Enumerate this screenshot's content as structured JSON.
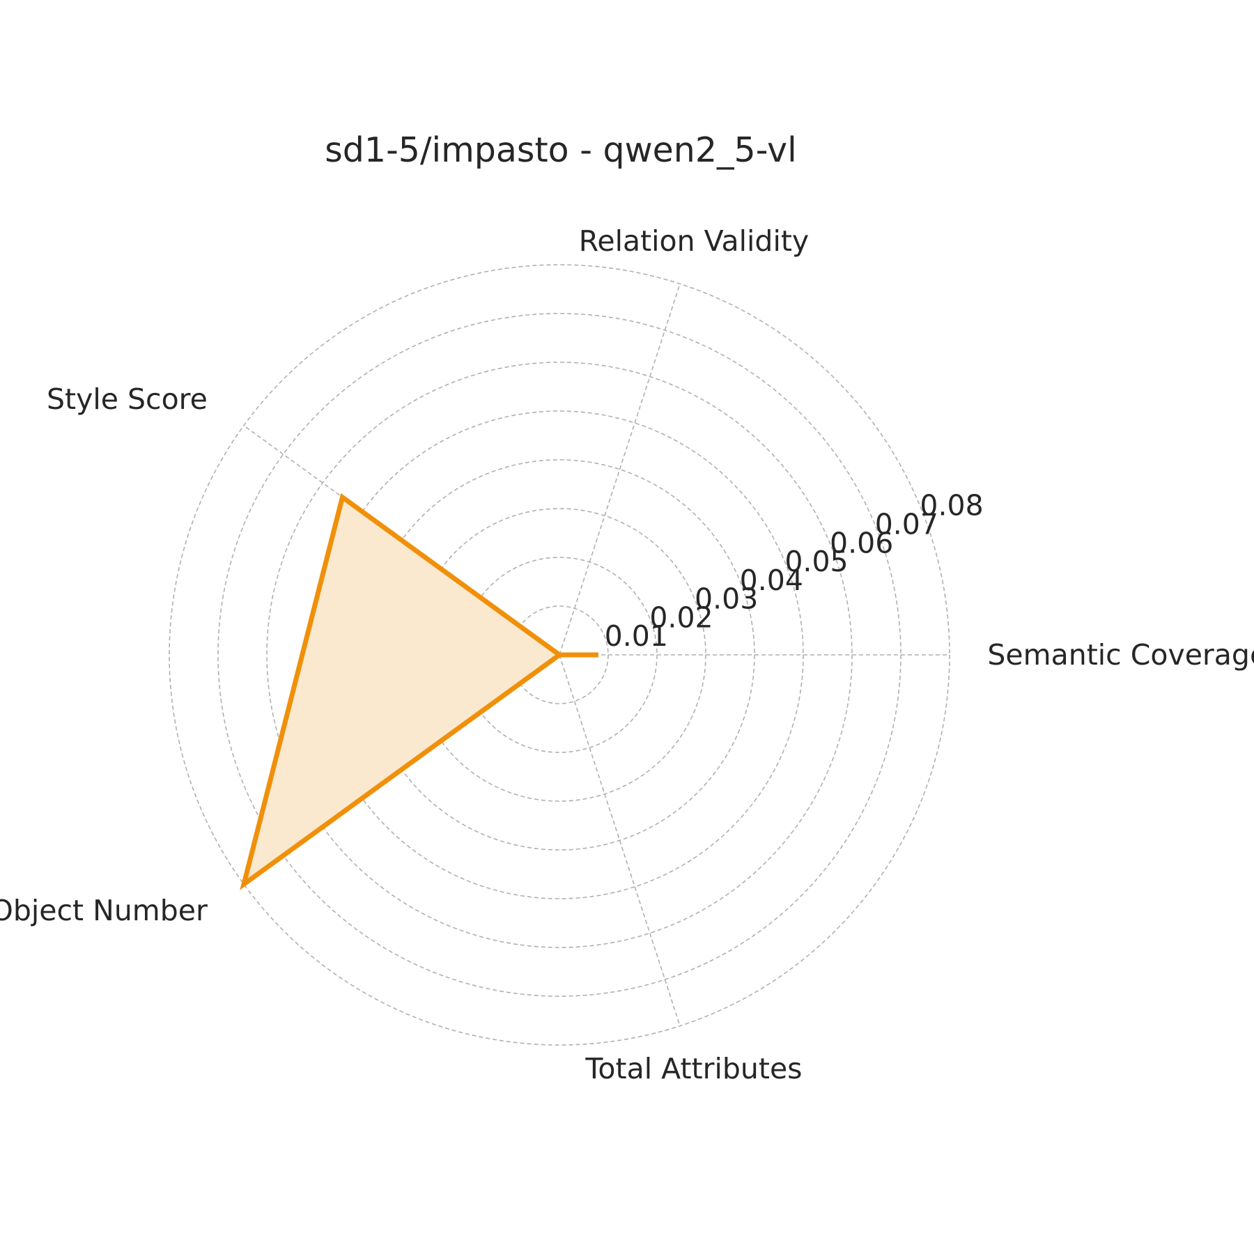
{
  "chart_data": {
    "type": "radar",
    "title": "sd1-5/impasto - qwen2_5-vl",
    "axes": [
      "Semantic Coverage",
      "Relation Validity",
      "Style Score",
      "Object Number",
      "Total Attributes"
    ],
    "r_ticks": [
      0.01,
      0.02,
      0.03,
      0.04,
      0.05,
      0.06,
      0.07,
      0.08
    ],
    "r_tick_labels": [
      "0.01",
      "0.02",
      "0.03",
      "0.04",
      "0.05",
      "0.06",
      "0.07",
      "0.08"
    ],
    "rlim": [
      0,
      0.08
    ],
    "grid": true,
    "series": [
      {
        "values": [
          0.008,
          0.0,
          0.055,
          0.08,
          0.0
        ],
        "color": "#f0900a",
        "fill": "#fbe9cf"
      }
    ]
  }
}
